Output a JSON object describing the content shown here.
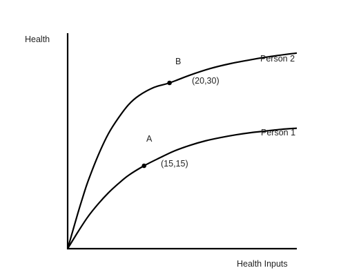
{
  "chart_data": {
    "type": "line",
    "title": "",
    "xlabel": "Health Inputs",
    "ylabel": "Health",
    "grid": false,
    "legend": "none",
    "series": [
      {
        "name": "Person 1",
        "color": "#000000",
        "points": [
          [
            0,
            0
          ],
          [
            2,
            3
          ],
          [
            4,
            5.8
          ],
          [
            6,
            8.1
          ],
          [
            8,
            10.1
          ],
          [
            10,
            11.8
          ],
          [
            12,
            13.3
          ],
          [
            15,
            15
          ],
          [
            18,
            16.4
          ],
          [
            21,
            17.7
          ],
          [
            24,
            18.7
          ],
          [
            27,
            19.5
          ],
          [
            30,
            20.1
          ],
          [
            33,
            20.6
          ],
          [
            36,
            21
          ],
          [
            39,
            21.3
          ],
          [
            42,
            21.6
          ],
          [
            45,
            21.8
          ]
        ]
      },
      {
        "name": "Person 2",
        "color": "#000000",
        "points": [
          [
            0,
            0
          ],
          [
            1,
            3.2
          ],
          [
            2,
            6.4
          ],
          [
            3,
            9.4
          ],
          [
            4,
            12.2
          ],
          [
            6,
            16.9
          ],
          [
            8,
            20.8
          ],
          [
            10,
            23.7
          ],
          [
            12,
            26.1
          ],
          [
            14,
            27.7
          ],
          [
            17,
            29.2
          ],
          [
            20,
            30
          ],
          [
            24,
            31.4
          ],
          [
            28,
            32.6
          ],
          [
            32,
            33.5
          ],
          [
            36,
            34.2
          ],
          [
            40,
            34.8
          ],
          [
            45,
            35.4
          ]
        ]
      }
    ],
    "annotations": [
      {
        "letter": "A",
        "coord_label": "(15,15)",
        "x": 15,
        "y": 15
      },
      {
        "letter": "B",
        "coord_label": "(20,30)",
        "x": 20,
        "y": 30
      }
    ],
    "xlim": [
      0,
      45
    ],
    "ylim": [
      0,
      40
    ]
  }
}
